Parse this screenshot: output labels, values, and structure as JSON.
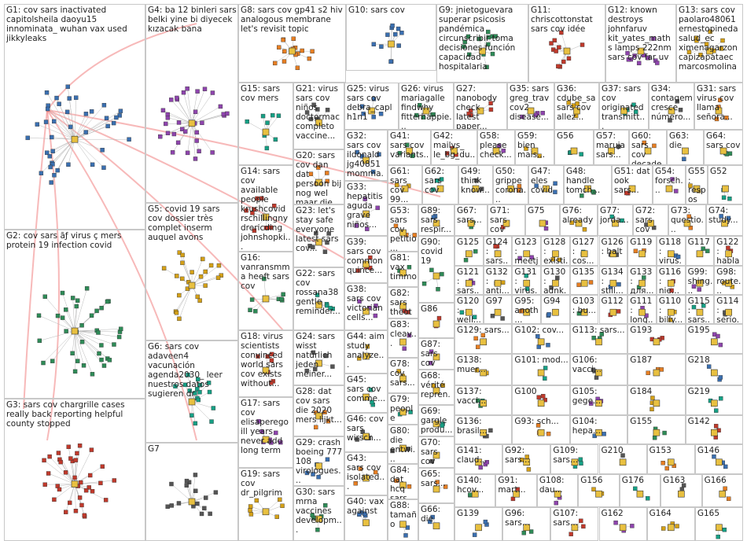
{
  "groups": [
    {
      "label": "G1: cov sars inactivated capitolsheila daoyu15 innominata_ wuhan vax used jikkyleaks"
    },
    {
      "label": "G2: cov sars ãƒ virus ç mers protein 19 infection covid"
    },
    {
      "label": "G3: sars cov chargrille cases really back reporting helpful county stopped"
    },
    {
      "label": "G4: ba 12 binleri sars belki yine bi diyecek kızacak bana"
    },
    {
      "label": "G5: covid 19 sars cov dossier très complet inserm auquel avons"
    },
    {
      "label": "G6: sars cov adaveen4 vacunación agenda2030_ leer nuestros datos sugieren dr"
    },
    {
      "label": "G7"
    },
    {
      "label": "G8: sars cov gp41 s2 hiv analogous membrane let's revisit topic"
    },
    {
      "label": "G10: sars cov"
    },
    {
      "label": "G9: jnietoguevara superar psicosis pandémica circunscribir toma decisiones función capacidad hospitalaria"
    },
    {
      "label": "G11: chriscottonstat sars cov idée"
    },
    {
      "label": "G12: known destroys johnfaruv kit_yates_maths lamps 222nm sars cov far uv"
    },
    {
      "label": "G13: sars cov paolaro48061 ernestopineda salud_ec ximenagarzon capizapataec marcosmolina"
    },
    {
      "label": "G15: sars cov mers"
    },
    {
      "label": "G21: virus sars cov niños doctormac completo vaccine..."
    },
    {
      "label": "G20: sars cov dan dat persoon bij nog wel maar die"
    },
    {
      "label": "G25: virus sars cov debra_capl h1n1"
    },
    {
      "label": "G26: virus mariagalle findwhy fitterhappie..."
    },
    {
      "label": "G27: nanobody check latest paper..."
    },
    {
      "label": "G35: sars greg_trav cov2 disease..."
    },
    {
      "label": "G36: cdube_sa sars cov allez..."
    },
    {
      "label": "G37: sars cov originated transmitt..."
    },
    {
      "label": "G34: contagem cresce número..."
    },
    {
      "label": "G31: sars virus cov llama señora..."
    },
    {
      "label": "G32: sars cov ildonald jg40851 momma..."
    },
    {
      "label": "G41: sars cov variants..."
    },
    {
      "label": "G42: mailys_ le_bg_du..."
    },
    {
      "label": "G58: please check..."
    },
    {
      "label": "G59: bien mais..."
    },
    {
      "label": "G56"
    },
    {
      "label": "G57: maruja sars..."
    },
    {
      "label": "G60: sars cov decade..."
    },
    {
      "label": "G63: die"
    },
    {
      "label": "G64: sars cov"
    },
    {
      "label": "G14: sars cov available people krushcovid rschillingny drericding johnshopki..."
    },
    {
      "label": "G33: hepatitis aguda grave niños..."
    },
    {
      "label": "G61: sars cov 99..."
    },
    {
      "label": "G62: sars cov"
    },
    {
      "label": "G49: think know..."
    },
    {
      "label": "G50: grippe corona..."
    },
    {
      "label": "G47: eles covid"
    },
    {
      "label": "G48: handle tomch..."
    },
    {
      "label": "G51: dat ook sars..."
    },
    {
      "label": "G54: forsch..."
    },
    {
      "label": "G55: respos infecç..."
    },
    {
      "label": "G52"
    },
    {
      "label": "G23: let's stay safe everyone latest sars cov..."
    },
    {
      "label": "G53: sars cov petitio..."
    },
    {
      "label": "G89: sars respir..."
    },
    {
      "label": "G67: sars..."
    },
    {
      "label": "G71: sars cov"
    },
    {
      "label": "G75"
    },
    {
      "label": "G76: already"
    },
    {
      "label": "G77: jorda..."
    },
    {
      "label": "G72: sars cov"
    },
    {
      "label": "G73: questio..."
    },
    {
      "label": "G74: study..."
    },
    {
      "label": "G16: vanransmma heeft sars cov"
    },
    {
      "label": "G18: virus scientists convinced world sars cov exists without..."
    },
    {
      "label": "G17: sars cov elisaperego ill years never add long term"
    },
    {
      "label": "G19: sars cov dr_pilgrim"
    },
    {
      "label": "G22: sars cov rossana38 gentle reminder..."
    },
    {
      "label": "G24: sars wisst natürlich jeden meiner..."
    },
    {
      "label": "G28: dat cov sars die 2020 mers lijkt..."
    },
    {
      "label": "G29: crash boeing 777 108 virologues..."
    },
    {
      "label": "G30: sars mrna vaccines developm..."
    },
    {
      "label": "G39: sars cov common quince..."
    },
    {
      "label": "G38: sars cov victorian cells..."
    },
    {
      "label": "G44: aim study analyze..."
    },
    {
      "label": "G45: sars cov comme..."
    },
    {
      "label": "G46: cov sars wirsch..."
    },
    {
      "label": "G43: sars cov isolated..."
    },
    {
      "label": "G40: vax against"
    },
    {
      "label": "G81: vax timmo..."
    },
    {
      "label": "G82: sars theoth..."
    },
    {
      "label": "G83: cleav..."
    },
    {
      "label": "G78: cov sars..."
    },
    {
      "label": "G79: people"
    },
    {
      "label": "G80: die entwi..."
    },
    {
      "label": "G84: dat hcq sars..."
    },
    {
      "label": "G88: tamaño"
    },
    {
      "label": "G90: covid 19"
    },
    {
      "label": "G86"
    },
    {
      "label": "G87: sars cov"
    },
    {
      "label": "G68: vérité repren..."
    },
    {
      "label": "G69: gargle produ..."
    },
    {
      "label": "G70: sars cov"
    },
    {
      "label": "G65: sars..."
    },
    {
      "label": "G66: die"
    },
    {
      "label": "G125"
    },
    {
      "label": "G124: sars..."
    },
    {
      "label": "G123: meetj..."
    },
    {
      "label": "G128: existi..."
    },
    {
      "label": "G127: cos..."
    },
    {
      "label": "G126: halt"
    },
    {
      "label": "G119"
    },
    {
      "label": "G118: virus..."
    },
    {
      "label": "G117"
    },
    {
      "label": "G122: hablan"
    },
    {
      "label": "G121: sars..."
    },
    {
      "label": "G132: anti..."
    },
    {
      "label": "G131: virus..."
    },
    {
      "label": "G130: adnk..."
    },
    {
      "label": "G135"
    },
    {
      "label": "G134: still..."
    },
    {
      "label": "G133: для..."
    },
    {
      "label": "G116: nie..."
    },
    {
      "label": "G99: shing..."
    },
    {
      "label": "G98: route..."
    },
    {
      "label": "G120: well..."
    },
    {
      "label": "G97"
    },
    {
      "label": "G95: anoth..."
    },
    {
      "label": "G94"
    },
    {
      "label": "G103: bu..."
    },
    {
      "label": "G112"
    },
    {
      "label": "G111: long..."
    },
    {
      "label": "G110: billy..."
    },
    {
      "label": "G115: sars..."
    },
    {
      "label": "G114: serio..."
    },
    {
      "label": "G129: sars..."
    },
    {
      "label": "G102: cov..."
    },
    {
      "label": "G113: sars..."
    },
    {
      "label": "G193"
    },
    {
      "label": "G195"
    },
    {
      "label": "G138: muer..."
    },
    {
      "label": "G101: mod..."
    },
    {
      "label": "G106: vacci..."
    },
    {
      "label": "G187"
    },
    {
      "label": "G218"
    },
    {
      "label": "G137: vacci..."
    },
    {
      "label": "G100"
    },
    {
      "label": "G105: gege..."
    },
    {
      "label": "G184"
    },
    {
      "label": "G219"
    },
    {
      "label": "G136: brasil..."
    },
    {
      "label": "G93: sch..."
    },
    {
      "label": "G104: hepa..."
    },
    {
      "label": "G155"
    },
    {
      "label": "G142"
    },
    {
      "label": "G141: claud..."
    },
    {
      "label": "G92: sars..."
    },
    {
      "label": "G109: sars..."
    },
    {
      "label": "G210"
    },
    {
      "label": "G153"
    },
    {
      "label": "G146"
    },
    {
      "label": "G140: hcov..."
    },
    {
      "label": "G91: mart..."
    },
    {
      "label": "G108: dau..."
    },
    {
      "label": "G156"
    },
    {
      "label": "G176"
    },
    {
      "label": "G163"
    },
    {
      "label": "G166"
    },
    {
      "label": "G139"
    },
    {
      "label": "G96: sars..."
    },
    {
      "label": "G107: sars..."
    },
    {
      "label": "G162"
    },
    {
      "label": "G164"
    },
    {
      "label": "G165"
    }
  ]
}
